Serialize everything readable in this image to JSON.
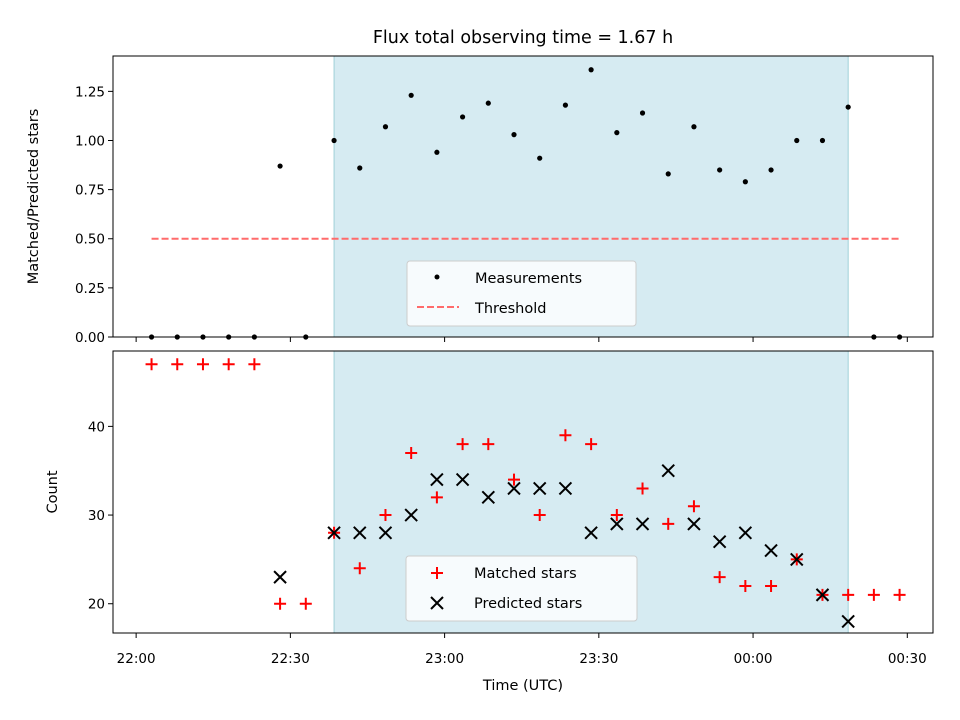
{
  "chart_data": {
    "type": "scatter",
    "title": "Flux total observing time = 1.67 h",
    "xlabel": "Time (UTC)",
    "x_tick_labels": [
      "22:00",
      "22:30",
      "23:00",
      "23:30",
      "00:00",
      "00:30"
    ],
    "x_ticks_minutes": [
      0,
      30,
      60,
      90,
      120,
      150
    ],
    "xlim_minutes": [
      -4.5,
      155
    ],
    "shaded_span_minutes": [
      38.5,
      138.5
    ],
    "shade_color": "#add8e6",
    "top_panel": {
      "ylabel": "Matched/Predicted stars",
      "ylim": [
        0,
        1.43
      ],
      "yticks": [
        0.0,
        0.25,
        0.5,
        0.75,
        1.0,
        1.25
      ],
      "ytick_labels": [
        "0.00",
        "0.25",
        "0.50",
        "0.75",
        "1.00",
        "1.25"
      ],
      "legend": {
        "placement": "lower center",
        "entries": [
          "Measurements",
          "Threshold"
        ]
      },
      "series": [
        {
          "name": "Measurements",
          "color": "#000000",
          "marker": "dot",
          "x": [
            3,
            8,
            13,
            18,
            23,
            28,
            33,
            38.5,
            43.5,
            48.5,
            53.5,
            58.5,
            63.5,
            68.5,
            73.5,
            78.5,
            83.5,
            88.5,
            93.5,
            98.5,
            103.5,
            108.5,
            113.5,
            118.5,
            123.5,
            128.5,
            133.5,
            138.5,
            143.5,
            148.5
          ],
          "y": [
            0,
            0,
            0,
            0,
            0,
            0.87,
            0,
            1.0,
            0.86,
            1.07,
            1.23,
            0.94,
            1.12,
            1.19,
            1.03,
            0.91,
            1.18,
            1.36,
            1.04,
            1.14,
            0.83,
            1.07,
            0.85,
            0.79,
            0.85,
            1.0,
            1.0,
            1.17,
            0,
            0
          ]
        },
        {
          "name": "Threshold",
          "color": "#ff6b6b",
          "style": "dashed",
          "x": [
            3,
            148.5
          ],
          "y": [
            0.5,
            0.5
          ]
        }
      ]
    },
    "bottom_panel": {
      "ylabel": "Count",
      "ylim": [
        16.7,
        48.5
      ],
      "yticks": [
        20,
        30,
        40
      ],
      "ytick_labels": [
        "20",
        "30",
        "40"
      ],
      "legend": {
        "placement": "lower center",
        "entries": [
          "Matched stars",
          "Predicted stars"
        ]
      },
      "series": [
        {
          "name": "Matched stars",
          "color": "#ff0000",
          "marker": "plus",
          "x": [
            3,
            8,
            13,
            18,
            23,
            28,
            33,
            38.5,
            43.5,
            48.5,
            53.5,
            58.5,
            63.5,
            68.5,
            73.5,
            78.5,
            83.5,
            88.5,
            93.5,
            98.5,
            103.5,
            108.5,
            113.5,
            118.5,
            123.5,
            128.5,
            133.5,
            138.5,
            143.5,
            148.5
          ],
          "y": [
            47,
            47,
            47,
            47,
            47,
            20,
            20,
            28,
            24,
            30,
            37,
            32,
            38,
            38,
            34,
            30,
            39,
            38,
            30,
            33,
            29,
            31,
            23,
            22,
            22,
            25,
            21,
            21,
            21,
            21
          ]
        },
        {
          "name": "Predicted stars",
          "color": "#000000",
          "marker": "x",
          "x": [
            28,
            38.5,
            43.5,
            48.5,
            53.5,
            58.5,
            63.5,
            68.5,
            73.5,
            78.5,
            83.5,
            88.5,
            93.5,
            98.5,
            103.5,
            108.5,
            113.5,
            118.5,
            123.5,
            128.5,
            133.5,
            138.5
          ],
          "y": [
            23,
            28,
            28,
            28,
            30,
            34,
            34,
            32,
            33,
            33,
            33,
            28,
            29,
            29,
            35,
            29,
            27,
            28,
            26,
            25,
            21,
            18
          ]
        }
      ]
    }
  }
}
